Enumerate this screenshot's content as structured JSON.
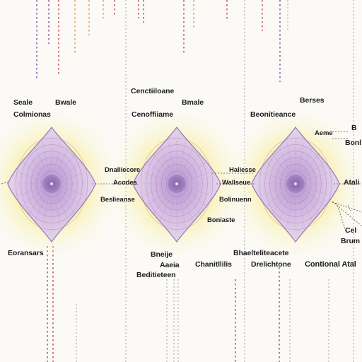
{
  "colors": {
    "background": "#fbfaf6",
    "glow": "#f5e56a",
    "diamond_fill": "#cdb3dc",
    "diamond_stroke": "#9b74b4",
    "core": "#7d5c9e",
    "leader": "#555555",
    "dashes": [
      "#7a3e9a",
      "#e08a3c",
      "#c9313d",
      "#8a8a8a"
    ]
  },
  "nodes": [
    {
      "name": "left-node",
      "icon": "radiating-diamond"
    },
    {
      "name": "center-node",
      "icon": "radiating-diamond"
    },
    {
      "name": "right-node",
      "icon": "radiating-diamond"
    }
  ],
  "labels": {
    "seale": "Seale",
    "bwale": "Bwale",
    "colmionas": "Colmionas",
    "cenctiiloane": "Cenctiiloane",
    "bmale": "Bmale",
    "cenoffiiame": "Cenoffiiame",
    "berses": "Berses",
    "beonitieance": "Beonitieance",
    "aeme": "Aeme",
    "b_edge": "B",
    "bonl": "Bonl",
    "dnalliecore": "Dnalliecore",
    "acodes": "Acodes",
    "haliesse": "Haliesse",
    "wallseue": "Wallseue",
    "atali": "Atali",
    "beslieanse": "Beslieanse",
    "bolinuenn": "Bolinuenn",
    "boniaste": "Boniaste",
    "cel": "Cel",
    "brum": "Brum",
    "eoransars": "Eoransars",
    "bneije": "Bneije",
    "aaeia": "Aaeia",
    "beditieteen": "Beditieteen",
    "bhaelteliteacete": "Bhaelteliteacete",
    "chanitllilis": "Chanitllilis",
    "drelichtone": "Drelichtone",
    "contional_atal": "Contional Atal"
  }
}
